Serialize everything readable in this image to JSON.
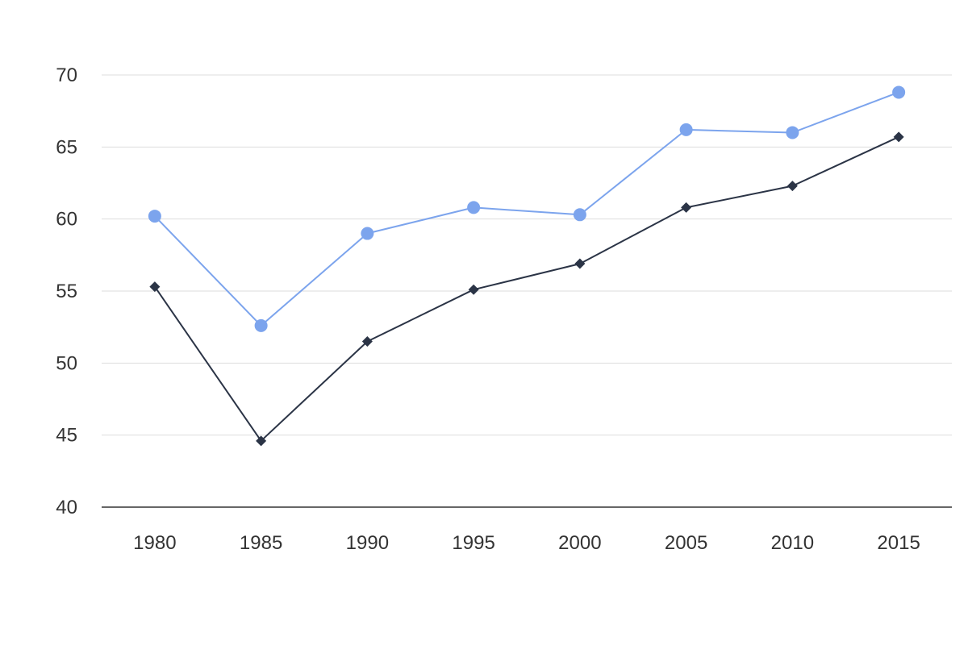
{
  "chart_data": {
    "type": "line",
    "title": "",
    "xlabel": "",
    "ylabel": "",
    "x": [
      "1980",
      "1985",
      "1990",
      "1995",
      "2000",
      "2005",
      "2010",
      "2015"
    ],
    "ylim": [
      40,
      70
    ],
    "yticks": [
      40,
      45,
      50,
      55,
      60,
      65,
      70
    ],
    "grid": true,
    "legend": "none",
    "series": [
      {
        "marker": "circle",
        "color": "#7ca4ed",
        "values": [
          60.2,
          52.6,
          59.0,
          60.8,
          60.3,
          66.2,
          66.0,
          68.8
        ]
      },
      {
        "marker": "diamond",
        "color": "#2b3446",
        "values": [
          55.3,
          44.6,
          51.5,
          55.1,
          56.9,
          60.8,
          62.3,
          65.7
        ]
      }
    ]
  }
}
